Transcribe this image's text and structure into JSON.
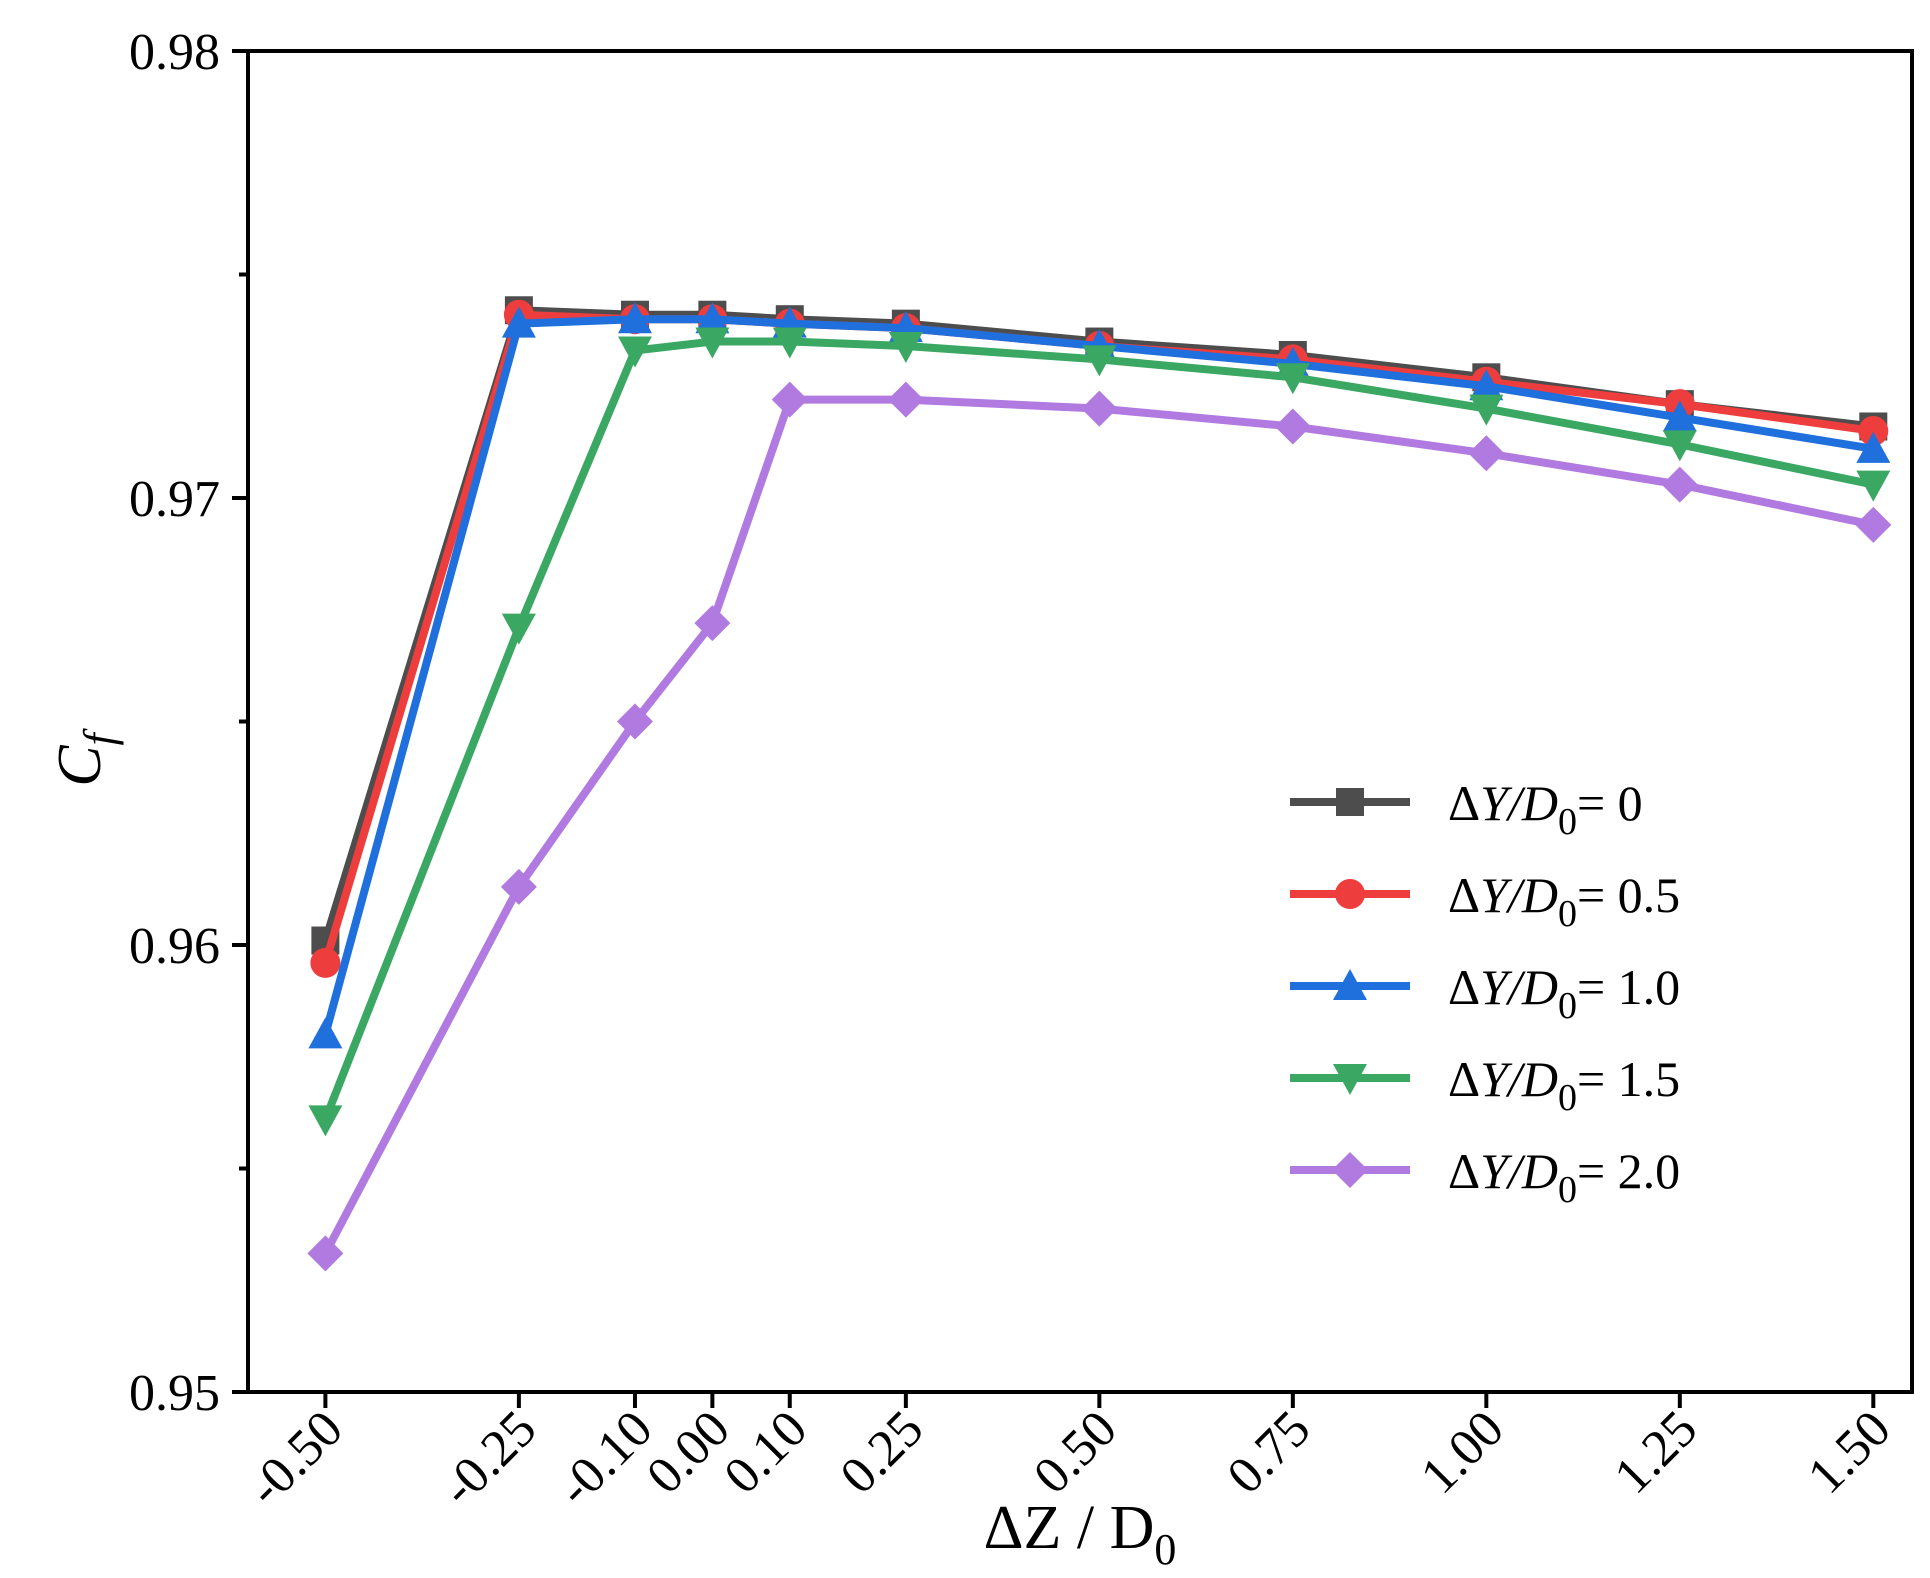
{
  "chart_data": {
    "type": "line",
    "title": "",
    "xlabel": {
      "prefix": "ΔZ / D",
      "sub": "0"
    },
    "ylabel": {
      "main": "C",
      "sub": "f"
    },
    "x": [
      "-0.50",
      "-0.25",
      "-0.10",
      "0.00",
      "0.10",
      "0.25",
      "0.50",
      "0.75",
      "1.00",
      "1.25",
      "1.50"
    ],
    "x_values": [
      -0.5,
      -0.25,
      -0.1,
      0.0,
      0.1,
      0.25,
      0.5,
      0.75,
      1.0,
      1.25,
      1.5
    ],
    "ylim": [
      0.95,
      0.98
    ],
    "yticks": [
      0.95,
      0.96,
      0.97,
      0.98
    ],
    "ytick_labels": [
      "0.95",
      "0.96",
      "0.97",
      "0.98"
    ],
    "legend_position": "center-right",
    "series": [
      {
        "name": "ΔY/D0= 0",
        "prefix": "ΔY/D",
        "sub": "0",
        "suffix": "= 0",
        "color": "#4d4d4d",
        "marker": "square",
        "values": [
          0.9601,
          0.9742,
          0.9741,
          0.9741,
          0.974,
          0.9739,
          0.9735,
          0.9732,
          0.9727,
          0.9721,
          0.9716
        ]
      },
      {
        "name": "ΔY/D0= 0.5",
        "prefix": "ΔY/D",
        "sub": "0",
        "suffix": "= 0.5",
        "color": "#ee3d3d",
        "marker": "circle",
        "values": [
          0.9596,
          0.9741,
          0.974,
          0.974,
          0.9739,
          0.9738,
          0.9734,
          0.9731,
          0.9726,
          0.9721,
          0.9715
        ]
      },
      {
        "name": "ΔY/D0= 1.0",
        "prefix": "ΔY/D",
        "sub": "0",
        "suffix": "= 1.0",
        "color": "#1f6fdc",
        "marker": "triangle-up",
        "values": [
          0.958,
          0.9739,
          0.974,
          0.974,
          0.9739,
          0.9738,
          0.9734,
          0.973,
          0.9725,
          0.9718,
          0.9711
        ]
      },
      {
        "name": "ΔY/D0= 1.5",
        "prefix": "ΔY/D",
        "sub": "0",
        "suffix": "= 1.5",
        "color": "#3aa863",
        "marker": "triangle-down",
        "values": [
          0.9561,
          0.9671,
          0.9733,
          0.9735,
          0.9735,
          0.9734,
          0.9731,
          0.9727,
          0.972,
          0.9712,
          0.9703
        ]
      },
      {
        "name": "ΔY/D0= 2.0",
        "prefix": "ΔY/D",
        "sub": "0",
        "suffix": "= 2.0",
        "color": "#b07ae0",
        "marker": "diamond",
        "values": [
          0.9531,
          0.9613,
          0.965,
          0.9672,
          0.9722,
          0.9722,
          0.972,
          0.9716,
          0.971,
          0.9703,
          0.9694
        ]
      }
    ]
  }
}
